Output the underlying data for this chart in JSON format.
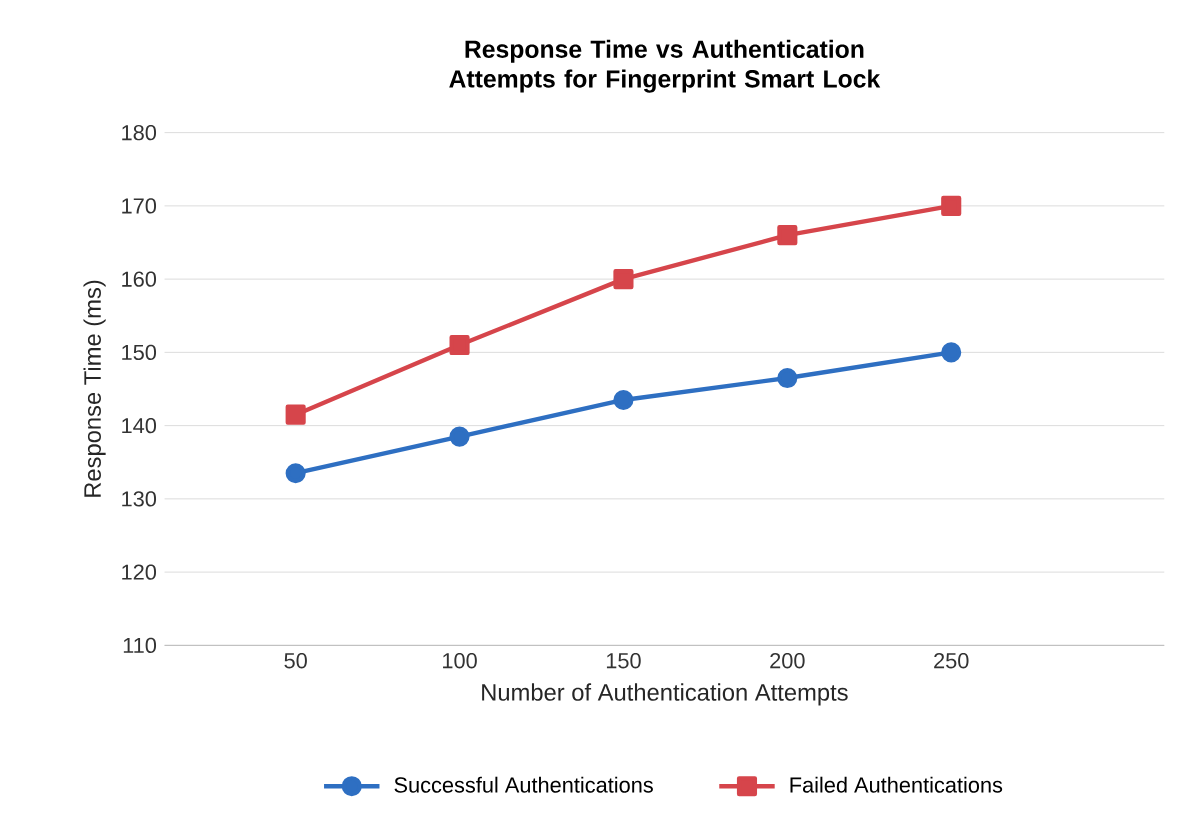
{
  "chart_data": {
    "type": "line",
    "title": "Response Time vs Authentication Attempts for Fingerprint Smart Lock",
    "xlabel": "Number of Authentication Attempts",
    "ylabel": "Response Time (ms)",
    "categories": [
      "50",
      "100",
      "150",
      "200",
      "250"
    ],
    "series": [
      {
        "name": "Successful Authentications",
        "color": "#2e6fc2",
        "marker": "circle",
        "values": [
          133.5,
          138.5,
          143.5,
          146.5,
          150
        ]
      },
      {
        "name": "Failed Authentications",
        "color": "#d6454b",
        "marker": "square",
        "values": [
          141.5,
          151,
          160,
          166,
          170
        ]
      }
    ],
    "ylim": [
      110,
      180
    ],
    "yticks": [
      110,
      120,
      130,
      140,
      150,
      160,
      170,
      180
    ],
    "grid": "y",
    "legend": "bottom",
    "line_style": "solid"
  }
}
